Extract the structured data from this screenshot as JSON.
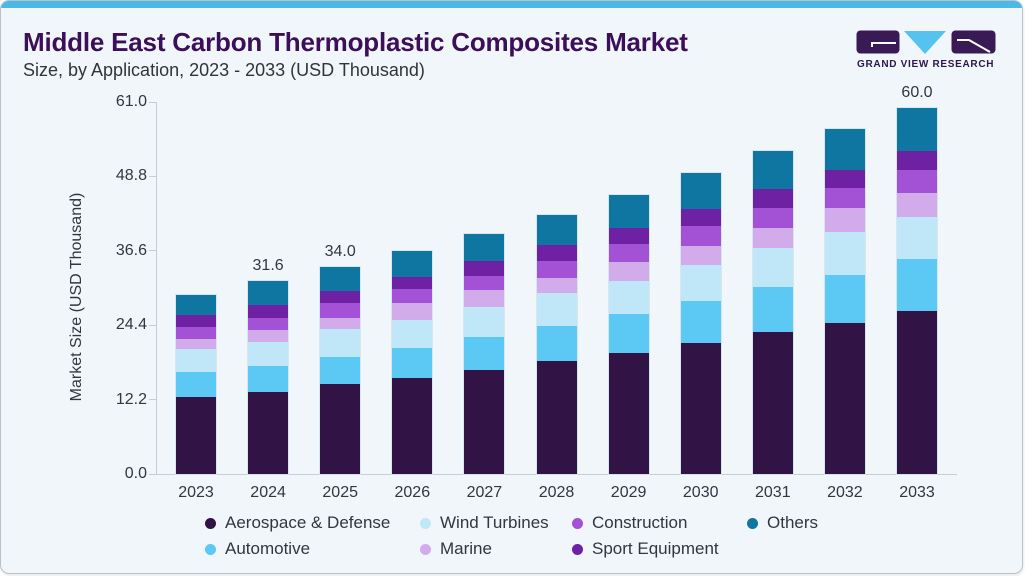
{
  "header": {
    "title": "Middle East Carbon Thermoplastic Composites Market",
    "subtitle": "Size, by Application, 2023 - 2033 (USD Thousand)",
    "logo_text": "GRAND VIEW RESEARCH"
  },
  "colors": {
    "accent_strip": "#4BB8E8",
    "card_background": "#F0F6FA",
    "card_border": "#B9C1C9",
    "title_text": "#3B1059",
    "body_text": "#33363D",
    "axis_line": "#C5CDD4",
    "logo_purple": "#3A1A55",
    "logo_cyan": "#56C2EE"
  },
  "chart_data": {
    "type": "bar",
    "stacked": true,
    "title": "Middle East Carbon Thermoplastic Composites Market Size, by Application, 2023 - 2033 (USD Thousand)",
    "xlabel": "",
    "ylabel": "Market Size (USD Thousand)",
    "ylim": [
      0,
      61.0
    ],
    "yticks": [
      0.0,
      12.2,
      24.4,
      36.6,
      48.8,
      61.0
    ],
    "grid": false,
    "legend_position": "bottom",
    "categories": [
      "2023",
      "2024",
      "2025",
      "2026",
      "2027",
      "2028",
      "2029",
      "2030",
      "2031",
      "2032",
      "2033"
    ],
    "series": [
      {
        "name": "Aerospace & Defense",
        "color": "#311345",
        "values": [
          12.6,
          13.4,
          14.7,
          15.7,
          17.0,
          18.5,
          19.9,
          21.4,
          23.2,
          24.7,
          26.7
        ]
      },
      {
        "name": "Automotive",
        "color": "#5CC8F4",
        "values": [
          4.2,
          4.3,
          4.4,
          5.0,
          5.4,
          5.7,
          6.3,
          7.0,
          7.5,
          8.0,
          8.5
        ]
      },
      {
        "name": "Wind Turbines",
        "color": "#BFE7F8",
        "values": [
          3.7,
          4.0,
          4.6,
          4.6,
          4.9,
          5.4,
          5.4,
          5.8,
          6.4,
          7.0,
          7.0
        ]
      },
      {
        "name": "Marine",
        "color": "#D2ABEA",
        "values": [
          1.6,
          1.9,
          1.9,
          2.7,
          2.8,
          2.6,
          3.1,
          3.1,
          3.2,
          3.9,
          3.8
        ]
      },
      {
        "name": "Construction",
        "color": "#A452D5",
        "values": [
          2.0,
          2.0,
          2.4,
          2.4,
          2.4,
          2.7,
          3.0,
          3.3,
          3.3,
          3.3,
          3.8
        ]
      },
      {
        "name": "Sport Equipment",
        "color": "#6F21A4",
        "values": [
          2.0,
          2.1,
          2.0,
          1.9,
          2.4,
          2.6,
          2.7,
          2.9,
          3.1,
          3.0,
          3.2
        ]
      },
      {
        "name": "Others",
        "color": "#0E76A0",
        "values": [
          3.3,
          3.9,
          4.0,
          4.2,
          4.4,
          4.9,
          5.4,
          5.8,
          6.3,
          6.6,
          7.0
        ]
      }
    ],
    "totals": [
      29.4,
      31.6,
      34.0,
      36.5,
      39.3,
      42.4,
      45.8,
      49.3,
      53.0,
      56.5,
      60.0
    ],
    "bar_labels": [
      "",
      "31.6",
      "34.0",
      "",
      "",
      "",
      "",
      "",
      "",
      "",
      "60.0"
    ]
  }
}
